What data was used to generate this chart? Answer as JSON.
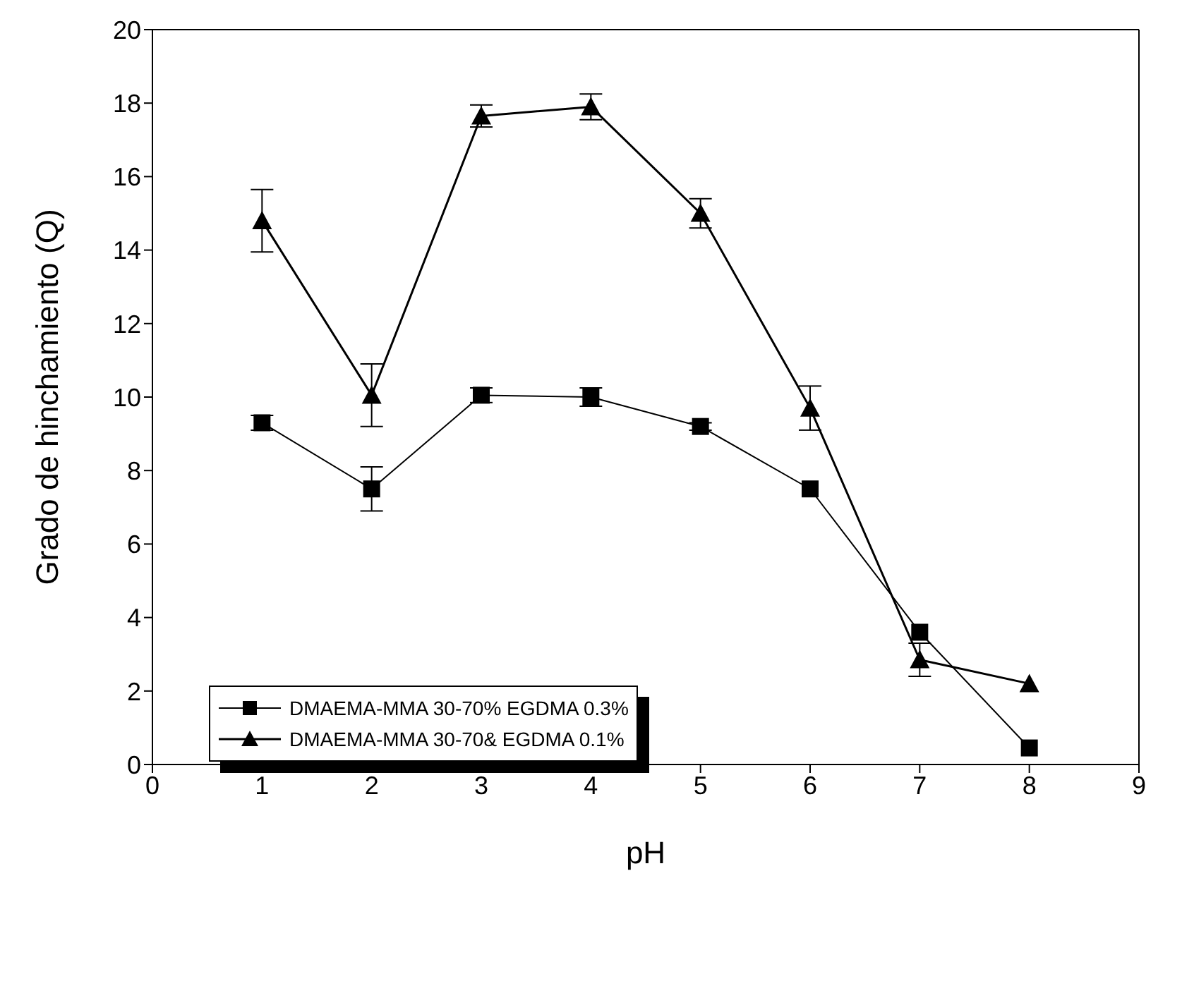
{
  "chart_data": {
    "type": "line",
    "xlabel": "pH",
    "ylabel": "Grado de hinchamiento (Q)",
    "x": [
      1,
      2,
      3,
      4,
      5,
      6,
      7,
      8
    ],
    "xlim": [
      0,
      9
    ],
    "xticks": [
      0,
      1,
      2,
      3,
      4,
      5,
      6,
      7,
      8,
      9
    ],
    "ylim": [
      0,
      20
    ],
    "yticks": [
      0,
      2,
      4,
      6,
      8,
      10,
      12,
      14,
      16,
      18,
      20
    ],
    "legend": "bottom left",
    "line_style": "solid",
    "series": [
      {
        "name": "DMAEMA-MMA 30-70% EGDMA 0.3%",
        "color": "#000000",
        "marker": "square",
        "values": [
          9.3,
          7.5,
          10.05,
          10.0,
          9.2,
          7.5,
          3.6,
          0.45
        ],
        "errors": [
          0.2,
          0.6,
          0.2,
          0.25,
          0.1,
          null,
          null,
          null
        ]
      },
      {
        "name": "DMAEMA-MMA 30-70& EGDMA 0.1%",
        "color": "#000000",
        "marker": "triangle",
        "values": [
          14.8,
          10.05,
          17.65,
          17.9,
          15.0,
          9.7,
          2.85,
          2.2
        ],
        "errors": [
          0.85,
          0.85,
          0.3,
          0.35,
          0.4,
          0.6,
          0.45,
          null
        ]
      }
    ]
  }
}
